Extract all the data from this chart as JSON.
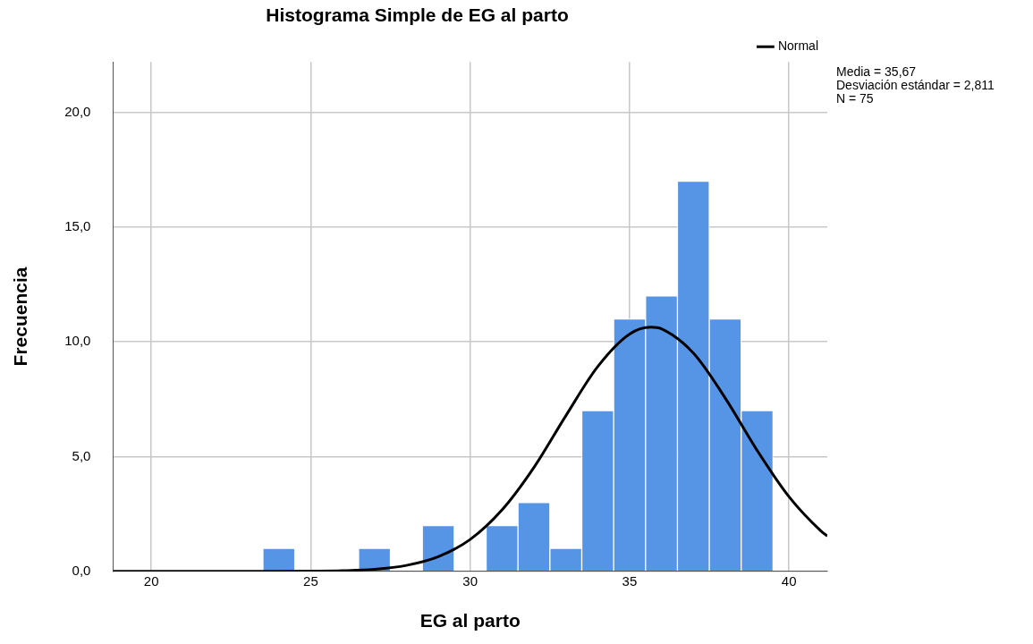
{
  "chart_data": {
    "type": "histogram",
    "title": "Histograma Simple de EG al parto",
    "xlabel": "EG al parto",
    "ylabel": "Frecuencia",
    "bins": [
      23.5,
      24.5,
      25.5,
      26.5,
      27.5,
      28.5,
      29.5,
      30.5,
      31.5,
      32.5,
      33.5,
      34.5,
      35.5,
      36.5,
      37.5,
      38.5,
      39.5
    ],
    "series": [
      {
        "color": "#5694e5",
        "values": [
          1,
          0,
          0,
          1,
          0,
          2,
          0,
          2,
          3,
          1,
          7,
          11,
          12,
          17,
          11,
          7
        ]
      },
      {
        "type": "line",
        "name": "Normal",
        "color": "#000000",
        "x": [
          18.8,
          22,
          24,
          25,
          26,
          27,
          28,
          29,
          30,
          31,
          32,
          33,
          34,
          35,
          35.67,
          36,
          37,
          38,
          39,
          40,
          41,
          41.2
        ],
        "values": [
          0,
          0,
          0,
          0.01,
          0.03,
          0.09,
          0.26,
          0.64,
          1.39,
          2.68,
          4.53,
          6.78,
          8.92,
          10.34,
          10.64,
          10.57,
          9.51,
          7.55,
          5.27,
          3.25,
          1.76,
          1.54
        ]
      }
    ],
    "xlim": [
      18.8,
      41.2
    ],
    "xticks": [
      20,
      25,
      30,
      35,
      40
    ],
    "ylim": [
      0,
      22.2
    ],
    "yticks": [
      {
        "value": 0,
        "label": "0,0"
      },
      {
        "value": 5,
        "label": "5,0"
      },
      {
        "value": 10,
        "label": "10,0"
      },
      {
        "value": 15,
        "label": "15,0"
      },
      {
        "value": 20,
        "label": "20,0"
      }
    ],
    "grid": true,
    "legend": "top right",
    "marker": "none",
    "annotations": [
      "Media = 35,67",
      "Desviación estándar = 2,811",
      "N = 75"
    ]
  }
}
